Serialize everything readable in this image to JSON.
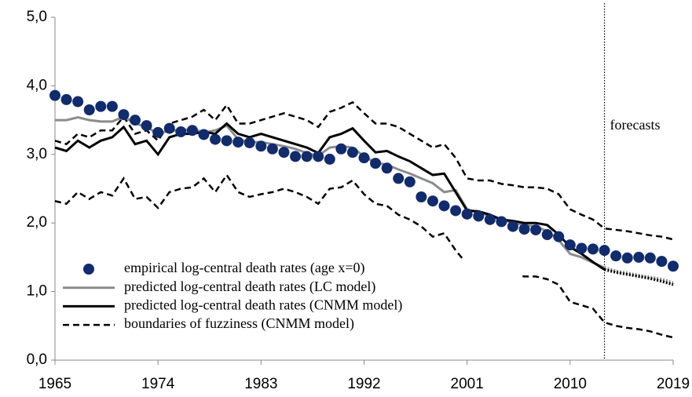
{
  "chart_data": {
    "type": "line",
    "x": [
      1965,
      1966,
      1967,
      1968,
      1969,
      1970,
      1971,
      1972,
      1973,
      1974,
      1975,
      1976,
      1977,
      1978,
      1979,
      1980,
      1981,
      1982,
      1983,
      1984,
      1985,
      1986,
      1987,
      1988,
      1989,
      1990,
      1991,
      1992,
      1993,
      1994,
      1995,
      1996,
      1997,
      1998,
      1999,
      2000,
      2001,
      2002,
      2003,
      2004,
      2005,
      2006,
      2007,
      2008,
      2009,
      2010,
      2011,
      2012,
      2013,
      2014,
      2015,
      2016,
      2017,
      2018,
      2019
    ],
    "xlim": [
      1965,
      2019
    ],
    "xticks": [
      1965,
      1974,
      1983,
      1992,
      2001,
      2010,
      2019
    ],
    "ylim": [
      0,
      5
    ],
    "yticks": [
      {
        "value": 0,
        "label": "0,0"
      },
      {
        "value": 1,
        "label": "1,0"
      },
      {
        "value": 2,
        "label": "2,0"
      },
      {
        "value": 3,
        "label": "3,0"
      },
      {
        "value": 4,
        "label": "4,0"
      },
      {
        "value": 5,
        "label": "5,0"
      }
    ],
    "forecast_start": 2013,
    "annotation": "forecasts",
    "legend": "lower left",
    "series": [
      {
        "name": "empirical log-central death rates (age x=0)",
        "color": "#112b6b",
        "style": "markers",
        "values": [
          3.86,
          3.8,
          3.77,
          3.65,
          3.7,
          3.7,
          3.58,
          3.5,
          3.42,
          3.32,
          3.38,
          3.33,
          3.35,
          3.29,
          3.22,
          3.2,
          3.18,
          3.17,
          3.12,
          3.08,
          3.03,
          2.97,
          2.97,
          2.97,
          2.93,
          3.08,
          3.03,
          2.95,
          2.87,
          2.8,
          2.65,
          2.6,
          2.38,
          2.32,
          2.25,
          2.18,
          2.13,
          2.1,
          2.05,
          2.02,
          1.95,
          1.91,
          1.9,
          1.83,
          1.8,
          1.68,
          1.63,
          1.62,
          1.6,
          1.52,
          1.49,
          1.5,
          1.49,
          1.44,
          1.37
        ]
      },
      {
        "name": "predicted log-central death rates (LC model)",
        "color": "#8c8c8c",
        "style": "solid",
        "values": [
          3.5,
          3.5,
          3.54,
          3.5,
          3.48,
          3.48,
          3.55,
          3.45,
          3.4,
          3.3,
          3.35,
          3.35,
          3.37,
          3.32,
          3.35,
          3.42,
          3.22,
          3.18,
          3.18,
          3.15,
          3.12,
          3.08,
          3.02,
          2.98,
          3.1,
          3.12,
          3.1,
          2.97,
          2.88,
          2.85,
          2.78,
          2.72,
          2.65,
          2.58,
          2.45,
          2.48,
          2.2,
          2.15,
          2.1,
          2.05,
          2.0,
          1.97,
          1.95,
          1.88,
          1.75,
          1.55,
          1.5,
          1.42,
          1.35,
          1.3,
          1.27,
          1.24,
          1.21,
          1.18,
          1.13
        ]
      },
      {
        "name": "predicted log-central death rates (CNMM model)",
        "color": "#000000",
        "style": "solid",
        "values": [
          3.1,
          3.05,
          3.2,
          3.1,
          3.2,
          3.25,
          3.4,
          3.15,
          3.2,
          3.0,
          3.25,
          3.3,
          3.3,
          3.33,
          3.3,
          3.45,
          3.3,
          3.25,
          3.3,
          3.25,
          3.2,
          3.15,
          3.1,
          3.02,
          3.25,
          3.3,
          3.38,
          3.2,
          3.03,
          3.05,
          2.97,
          2.9,
          2.8,
          2.7,
          2.72,
          2.45,
          2.18,
          2.17,
          2.12,
          2.05,
          2.03,
          2.0,
          2.0,
          1.97,
          1.83,
          1.65,
          1.55,
          1.43,
          1.32,
          1.28,
          1.25,
          1.22,
          1.19,
          1.15,
          1.1
        ]
      },
      {
        "name": "boundaries of fuzziness (CNMM model)",
        "color": "#000000",
        "style": "dashed",
        "values": [
          3.2,
          3.15,
          3.3,
          3.25,
          3.35,
          3.35,
          3.55,
          3.3,
          3.35,
          3.2,
          3.45,
          3.5,
          3.55,
          3.65,
          3.5,
          3.72,
          3.45,
          3.45,
          3.5,
          3.55,
          3.6,
          3.55,
          3.5,
          3.4,
          3.62,
          3.68,
          3.76,
          3.6,
          3.45,
          3.45,
          3.4,
          3.3,
          3.2,
          3.1,
          3.15,
          2.95,
          2.65,
          2.62,
          2.62,
          2.57,
          2.55,
          2.52,
          2.52,
          2.5,
          2.42,
          2.2,
          2.12,
          2.05,
          1.92,
          1.9,
          1.88,
          1.85,
          1.82,
          1.8,
          1.76
        ],
        "lower": [
          2.32,
          2.28,
          2.45,
          2.35,
          2.45,
          2.4,
          2.65,
          2.35,
          2.38,
          2.22,
          2.45,
          2.5,
          2.52,
          2.65,
          2.45,
          2.7,
          2.45,
          2.38,
          2.42,
          2.45,
          2.5,
          2.45,
          2.38,
          2.28,
          2.5,
          2.52,
          2.62,
          2.42,
          2.28,
          2.25,
          2.12,
          2.05,
          1.95,
          1.8,
          1.85,
          1.6,
          1.4,
          1.35,
          1.35,
          1.28,
          1.25,
          1.22,
          1.22,
          1.18,
          1.1,
          0.85,
          0.8,
          0.75,
          0.55,
          0.5,
          0.47,
          0.45,
          0.42,
          0.37,
          0.33
        ]
      }
    ]
  }
}
